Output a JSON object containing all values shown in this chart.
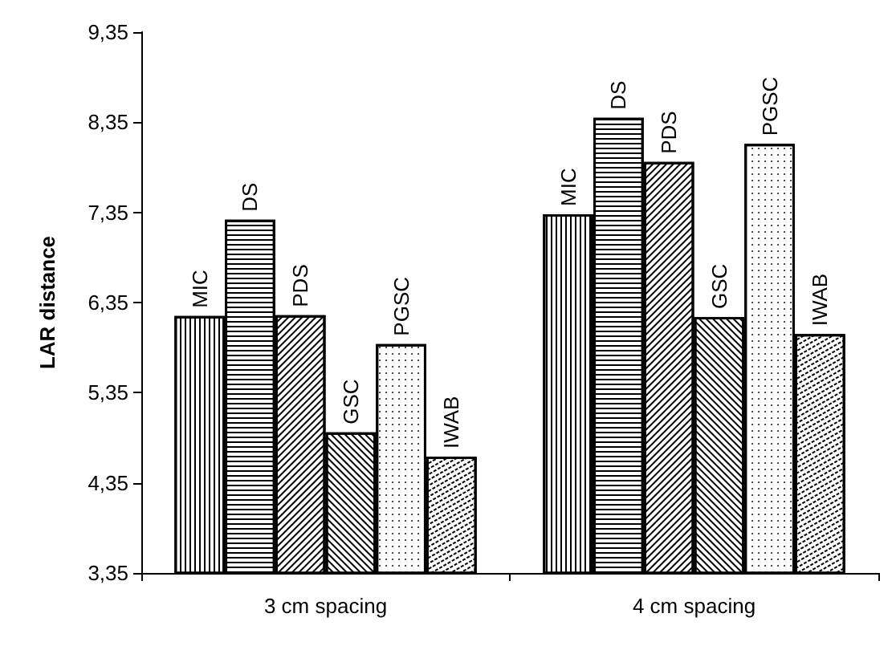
{
  "chart_data": {
    "type": "bar",
    "ylabel": "LAR distance",
    "categories": [
      "3 cm spacing",
      "4 cm spacing"
    ],
    "series": [
      {
        "name": "MIC",
        "color": "#ffffff",
        "values": [
          6.2,
          7.33
        ]
      },
      {
        "name": "DS",
        "color": "#ffffff",
        "values": [
          7.27,
          8.4
        ]
      },
      {
        "name": "PDS",
        "color": "#ffffff",
        "values": [
          6.21,
          7.91
        ]
      },
      {
        "name": "GSC",
        "color": "#ffffff",
        "values": [
          4.91,
          6.19
        ]
      },
      {
        "name": "PGSC",
        "color": "#ffffff",
        "values": [
          5.89,
          8.11
        ]
      },
      {
        "name": "IWAB",
        "color": "#ffffff",
        "values": [
          4.64,
          6.0
        ]
      }
    ],
    "ylim": [
      3.35,
      9.35
    ],
    "yticks": [
      {
        "value": 3.35,
        "label": "3,35"
      },
      {
        "value": 4.35,
        "label": "4,35"
      },
      {
        "value": 5.35,
        "label": "5,35"
      },
      {
        "value": 6.35,
        "label": "6,35"
      },
      {
        "value": 7.35,
        "label": "7,35"
      },
      {
        "value": 8.35,
        "label": "8,35"
      },
      {
        "value": 9.35,
        "label": "9,35"
      }
    ],
    "grid": false,
    "legend": false
  }
}
